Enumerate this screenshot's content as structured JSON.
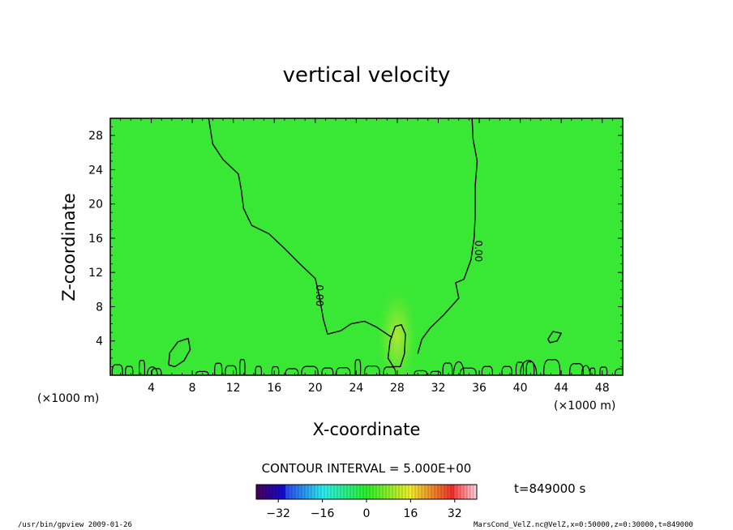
{
  "chart_data": {
    "type": "heatmap",
    "title": "vertical velocity",
    "xlabel": "X-coordinate",
    "ylabel": "Z-coordinate",
    "x_unit_label": "(×1000 m)",
    "y_unit_label": "(×1000 m)",
    "xlim": [
      0,
      50
    ],
    "ylim": [
      0,
      30
    ],
    "x_ticks": [
      4,
      8,
      12,
      16,
      20,
      24,
      28,
      32,
      36,
      40,
      44,
      48
    ],
    "y_ticks": [
      4,
      8,
      12,
      16,
      20,
      24,
      28
    ],
    "background_color": "#38e834",
    "contour_label": "0.00",
    "contour_interval_text": "CONTOUR INTERVAL = 5.000E+00",
    "time_text": "t=849000 s",
    "colorbar": {
      "range": [
        -40,
        40
      ],
      "ticks": [
        -32,
        -16,
        0,
        16,
        32
      ]
    },
    "contours_zero": [
      {
        "points": [
          [
            9.6,
            30
          ],
          [
            10,
            27
          ],
          [
            11,
            25.2
          ],
          [
            12.5,
            23.5
          ],
          [
            12.8,
            21.5
          ],
          [
            13,
            19.5
          ],
          [
            13.8,
            17.5
          ],
          [
            15.5,
            16.5
          ],
          [
            17,
            14.8
          ],
          [
            18.5,
            13
          ],
          [
            20,
            11.3
          ],
          [
            20.4,
            9.2
          ],
          [
            20.8,
            6.5
          ],
          [
            21.2,
            4.8
          ],
          [
            22.5,
            5.2
          ],
          [
            23.5,
            6
          ],
          [
            24.8,
            6.3
          ],
          [
            26,
            5.6
          ],
          [
            27.5,
            4.4
          ]
        ]
      },
      {
        "points": [
          [
            35.3,
            30
          ],
          [
            35.4,
            27.5
          ],
          [
            35.8,
            25
          ],
          [
            35.6,
            22
          ],
          [
            35.6,
            18.5
          ],
          [
            35.5,
            16
          ],
          [
            35.2,
            13.5
          ],
          [
            34.5,
            11.2
          ],
          [
            33.7,
            10.8
          ],
          [
            34,
            9
          ],
          [
            32.5,
            7
          ],
          [
            31.2,
            5.5
          ],
          [
            30.4,
            4.2
          ],
          [
            30,
            2.5
          ]
        ]
      },
      {
        "points": [
          [
            27.1,
            2
          ],
          [
            27.3,
            4
          ],
          [
            27.8,
            5.7
          ],
          [
            28.4,
            5.9
          ],
          [
            28.8,
            4.8
          ],
          [
            28.7,
            2.5
          ],
          [
            28.3,
            1
          ],
          [
            27.6,
            1
          ],
          [
            27.1,
            2
          ]
        ]
      },
      {
        "points": [
          [
            5.7,
            1.2
          ],
          [
            5.8,
            2.6
          ],
          [
            6.6,
            3.9
          ],
          [
            7.6,
            4.3
          ],
          [
            7.8,
            3
          ],
          [
            7.2,
            1.7
          ],
          [
            6.3,
            1
          ],
          [
            5.7,
            1.2
          ]
        ]
      },
      {
        "points": [
          [
            42.7,
            4.2
          ],
          [
            43.2,
            5.1
          ],
          [
            44,
            4.9
          ],
          [
            43.6,
            4
          ],
          [
            42.9,
            3.8
          ],
          [
            42.7,
            4.2
          ]
        ]
      }
    ],
    "warm_anomaly": {
      "x_center": 28,
      "z_center": 4.5,
      "x_halfwidth": 2.2,
      "z_halfwidth": 6.5
    }
  },
  "footer": {
    "program": "/usr/bin/gpview  2009-01-26",
    "source": "MarsCond_VelZ.nc@VelZ,x=0:50000,z=0:30000,t=849000"
  }
}
